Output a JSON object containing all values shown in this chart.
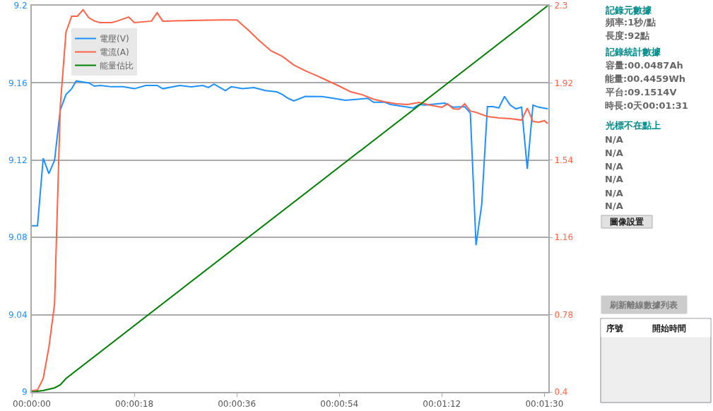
{
  "chart_data": {
    "type": "line",
    "xlim": [
      0,
      90.7
    ],
    "xticks": [
      {
        "value": 0,
        "label": "00:00:00"
      },
      {
        "value": 18,
        "label": "00:00:18"
      },
      {
        "value": 36,
        "label": "00:00:36"
      },
      {
        "value": 54,
        "label": "00:00:54"
      },
      {
        "value": 72,
        "label": "00:01:12"
      },
      {
        "value": 90,
        "label": "00:01:30"
      }
    ],
    "ylim": [
      9,
      9.2
    ],
    "yticks": [
      9,
      9.04,
      9.08,
      9.12,
      9.16,
      9.2
    ],
    "y2lim": [
      0.4,
      2.3
    ],
    "y2ticks": [
      0.4,
      0.78,
      1.16,
      1.54,
      1.92,
      2.3
    ],
    "grid": "y",
    "legend": "top left",
    "series": [
      {
        "name": "電壓(V)",
        "color": "#1e90ff",
        "x": [
          0,
          1,
          2,
          3,
          4,
          5,
          6,
          7,
          7.8,
          10,
          11,
          12,
          14,
          16,
          18,
          20,
          22,
          23,
          26,
          28,
          30,
          31,
          32,
          34,
          35,
          37,
          39,
          41,
          43,
          44,
          45,
          46,
          48,
          51,
          53,
          55,
          59,
          60,
          62,
          63,
          67,
          68,
          69,
          72.5,
          74,
          76,
          77,
          78,
          79,
          80,
          81,
          82,
          83,
          84,
          85,
          86,
          87,
          88,
          89,
          90.6
        ],
        "values": [
          9.086,
          9.086,
          9.121,
          9.113,
          9.12,
          9.146,
          9.154,
          9.157,
          9.161,
          9.16,
          9.1583,
          9.1587,
          9.158,
          9.158,
          9.157,
          9.1587,
          9.1587,
          9.157,
          9.1587,
          9.158,
          9.1587,
          9.1576,
          9.1594,
          9.156,
          9.158,
          9.157,
          9.1576,
          9.156,
          9.1554,
          9.154,
          9.152,
          9.1507,
          9.153,
          9.1529,
          9.152,
          9.151,
          9.152,
          9.15,
          9.15,
          9.1488,
          9.147,
          9.1488,
          9.1485,
          9.1495,
          9.1474,
          9.1477,
          9.1444,
          9.076,
          9.097,
          9.1477,
          9.1477,
          9.147,
          9.153,
          9.1485,
          9.1466,
          9.1474,
          9.1155,
          9.1485,
          9.1474,
          9.1466
        ]
      },
      {
        "name": "電流(A)",
        "color": "#ff6347",
        "axis": "y2",
        "x": [
          0,
          1,
          2,
          3,
          4,
          5,
          6,
          7,
          8,
          9,
          10,
          11,
          12,
          14,
          15,
          17,
          18,
          21,
          22,
          23,
          28,
          33,
          36,
          38,
          40,
          42,
          44,
          46,
          48,
          50,
          52,
          54,
          56,
          58,
          60,
          62,
          64,
          66,
          68,
          70,
          72,
          73,
          74,
          75,
          76,
          77,
          78,
          80,
          82,
          84,
          86,
          87,
          88,
          89,
          90,
          90.6
        ],
        "values": [
          0.407,
          0.41,
          0.466,
          0.62,
          0.834,
          1.807,
          2.17,
          2.248,
          2.248,
          2.28,
          2.241,
          2.224,
          2.217,
          2.217,
          2.224,
          2.244,
          2.217,
          2.224,
          2.265,
          2.224,
          2.227,
          2.23,
          2.23,
          2.18,
          2.126,
          2.078,
          2.05,
          2.008,
          1.98,
          1.956,
          1.93,
          1.904,
          1.876,
          1.862,
          1.84,
          1.827,
          1.817,
          1.814,
          1.824,
          1.81,
          1.8,
          1.817,
          1.793,
          1.79,
          1.817,
          1.782,
          1.775,
          1.755,
          1.748,
          1.744,
          1.737,
          1.796,
          1.73,
          1.727,
          1.734,
          1.72
        ]
      },
      {
        "name": "能量估比",
        "color": "#008000",
        "axis": "y2",
        "x": [
          0,
          2,
          4,
          5,
          6,
          90.6
        ],
        "values": [
          0.4,
          0.407,
          0.42,
          0.435,
          0.466,
          2.3
        ]
      }
    ],
    "annotations": [
      "記錄元數據",
      "頻率:1秒/點",
      "長度:92點",
      "記錄統計數據",
      "容量:00.0487Ah",
      "能量:00.4459Wh",
      "平台:09.1514V",
      "時長:0天00:01:31",
      "光標不在點上",
      "N/A",
      "N/A",
      "N/A",
      "N/A",
      "N/A",
      "N/A",
      "圖像設置",
      "刷新離線數據列表",
      "序號",
      "開始時間"
    ]
  }
}
